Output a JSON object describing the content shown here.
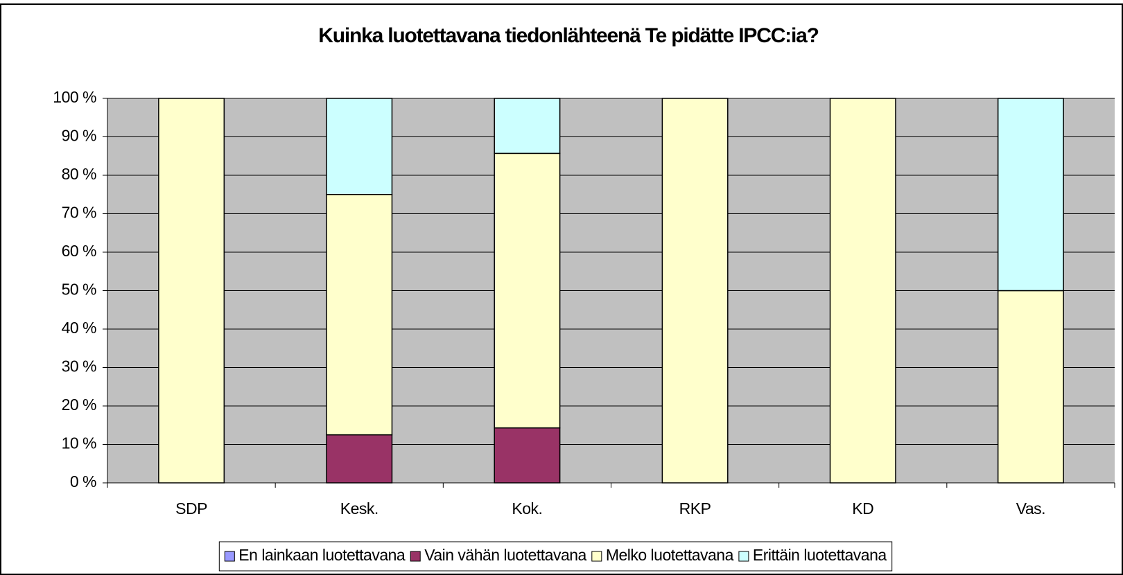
{
  "chart_data": {
    "type": "stacked_bar_percent",
    "title": "Kuinka luotettavana tiedonlähteenä Te pidätte IPCC:ia?",
    "categories": [
      "SDP",
      "Kesk.",
      "Kok.",
      "RKP",
      "KD",
      "Vas."
    ],
    "series": [
      {
        "name": "En lainkaan luotettavana",
        "color": "#9999ff",
        "values": [
          0,
          0,
          0,
          0,
          0,
          0
        ]
      },
      {
        "name": "Vain vähän luotettavana",
        "color": "#993366",
        "values": [
          0,
          12.5,
          14.3,
          0,
          0,
          0
        ]
      },
      {
        "name": "Melko luotettavana",
        "color": "#ffffcc",
        "values": [
          100,
          62.5,
          71.4,
          100,
          100,
          50
        ]
      },
      {
        "name": "Erittäin luotettavana",
        "color": "#ccffff",
        "values": [
          0,
          25,
          14.3,
          0,
          0,
          50
        ]
      }
    ],
    "ylim": [
      0,
      100
    ],
    "yticks": [
      {
        "value": 0,
        "label": "0 %"
      },
      {
        "value": 10,
        "label": "10 %"
      },
      {
        "value": 20,
        "label": "20 %"
      },
      {
        "value": 30,
        "label": "30 %"
      },
      {
        "value": 40,
        "label": "40 %"
      },
      {
        "value": 50,
        "label": "50 %"
      },
      {
        "value": 60,
        "label": "60 %"
      },
      {
        "value": 70,
        "label": "70 %"
      },
      {
        "value": 80,
        "label": "80 %"
      },
      {
        "value": 90,
        "label": "90 %"
      },
      {
        "value": 100,
        "label": "100 %"
      }
    ],
    "grid": true,
    "legend": "bottom"
  }
}
